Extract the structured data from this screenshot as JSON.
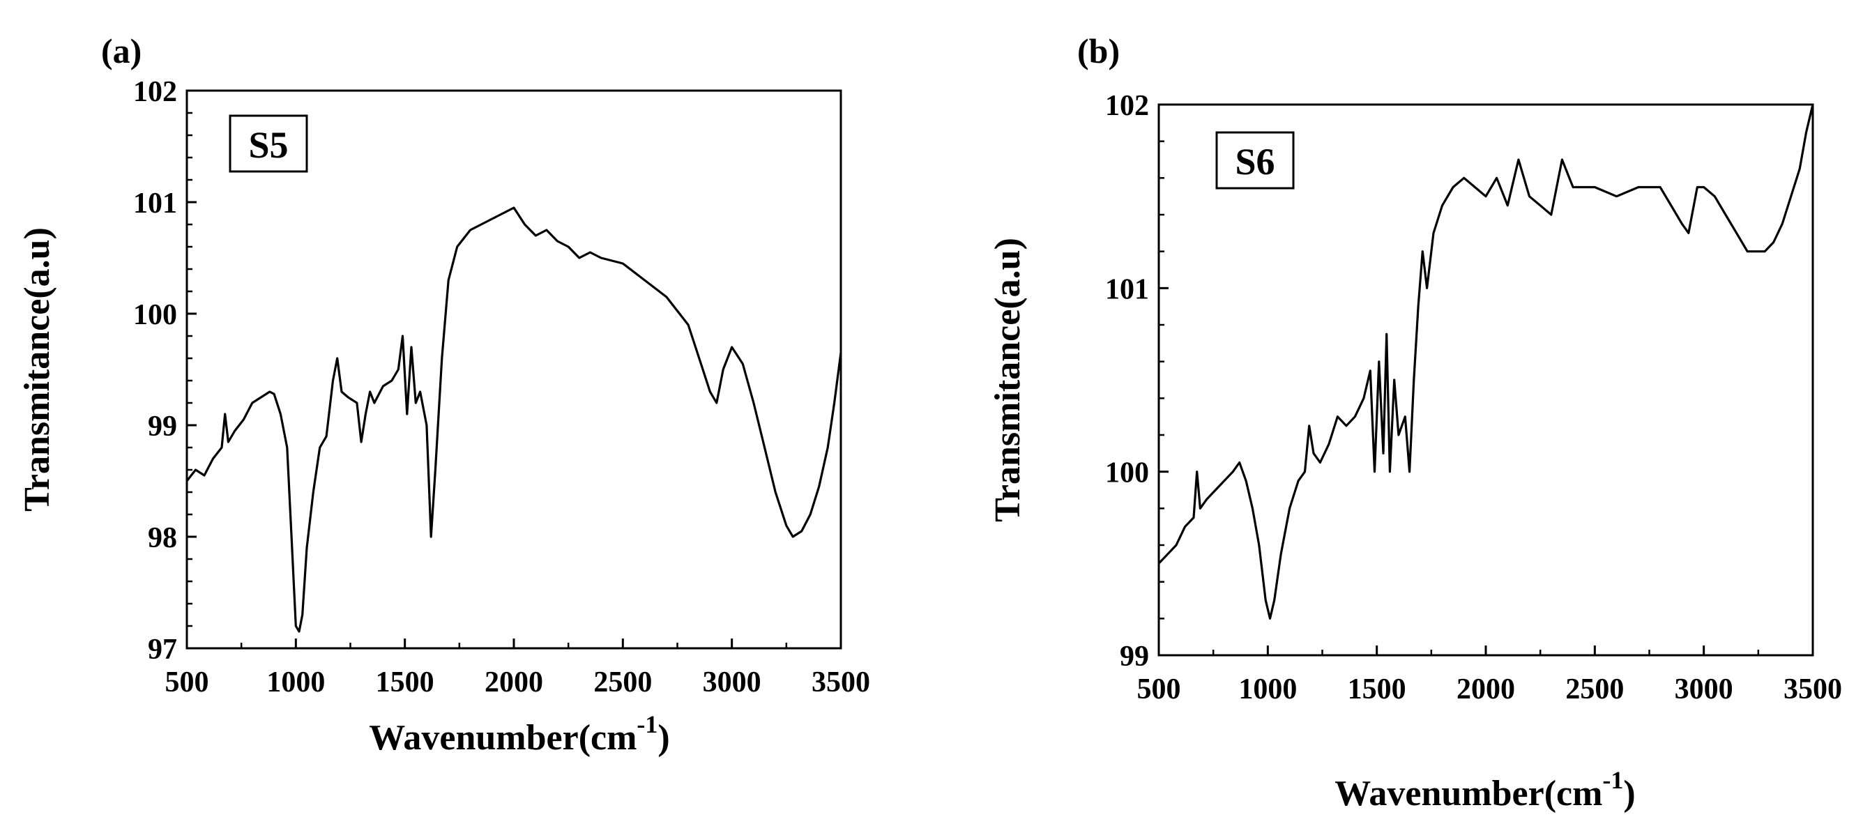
{
  "figure": {
    "panels": [
      "(a)",
      "(b)"
    ]
  },
  "chart_data": [
    {
      "type": "line",
      "panel_label": "(a)",
      "legend_text": "S5",
      "xlabel": "Wavenumber(cm",
      "xlabel_sup": "-1",
      "xlabel_tail": ")",
      "ylabel": "Transmitance(a.u)",
      "xlim": [
        500,
        3500
      ],
      "ylim": [
        97,
        102
      ],
      "xticks": [
        500,
        1000,
        1500,
        2000,
        2500,
        3000,
        3500
      ],
      "xtick_labels": [
        "500",
        "1000",
        "1500",
        "2000",
        "2500",
        "3000",
        "3500"
      ],
      "yticks": [
        97,
        98,
        99,
        100,
        101,
        102
      ],
      "ytick_labels": [
        "97",
        "98",
        "99",
        "100",
        "101",
        "102"
      ],
      "series": [
        {
          "name": "S5",
          "x": [
            500,
            540,
            580,
            620,
            660,
            675,
            690,
            720,
            760,
            800,
            840,
            880,
            900,
            930,
            960,
            980,
            1000,
            1015,
            1030,
            1050,
            1080,
            1110,
            1140,
            1170,
            1190,
            1210,
            1240,
            1280,
            1300,
            1320,
            1340,
            1360,
            1400,
            1440,
            1470,
            1490,
            1510,
            1530,
            1550,
            1570,
            1600,
            1620,
            1640,
            1670,
            1700,
            1740,
            1800,
            1850,
            1900,
            1950,
            2000,
            2050,
            2100,
            2150,
            2200,
            2250,
            2300,
            2350,
            2400,
            2500,
            2600,
            2700,
            2800,
            2850,
            2900,
            2930,
            2960,
            3000,
            3050,
            3100,
            3150,
            3200,
            3250,
            3280,
            3320,
            3360,
            3400,
            3440,
            3470,
            3500
          ],
          "y": [
            98.5,
            98.6,
            98.55,
            98.7,
            98.8,
            99.1,
            98.85,
            98.95,
            99.05,
            99.2,
            99.25,
            99.3,
            99.28,
            99.1,
            98.8,
            98.0,
            97.2,
            97.15,
            97.3,
            97.9,
            98.4,
            98.8,
            98.9,
            99.4,
            99.6,
            99.3,
            99.25,
            99.2,
            98.85,
            99.1,
            99.3,
            99.2,
            99.35,
            99.4,
            99.5,
            99.8,
            99.1,
            99.7,
            99.2,
            99.3,
            99.0,
            98.0,
            98.6,
            99.6,
            100.3,
            100.6,
            100.75,
            100.8,
            100.85,
            100.9,
            100.95,
            100.8,
            100.7,
            100.75,
            100.65,
            100.6,
            100.5,
            100.55,
            100.5,
            100.45,
            100.3,
            100.15,
            99.9,
            99.6,
            99.3,
            99.2,
            99.5,
            99.7,
            99.55,
            99.2,
            98.8,
            98.4,
            98.1,
            98.0,
            98.05,
            98.2,
            98.45,
            98.8,
            99.2,
            99.65
          ]
        }
      ]
    },
    {
      "type": "line",
      "panel_label": "(b)",
      "legend_text": "S6",
      "xlabel": "Wavenumber(cm",
      "xlabel_sup": "-1",
      "xlabel_tail": ")",
      "ylabel": "Transmitance(a.u)",
      "xlim": [
        500,
        3500
      ],
      "ylim": [
        99,
        102
      ],
      "xticks": [
        500,
        1000,
        1500,
        2000,
        2500,
        3000,
        3500
      ],
      "xtick_labels": [
        "500",
        "1000",
        "1500",
        "2000",
        "2500",
        "3000",
        "3500"
      ],
      "yticks": [
        99,
        100,
        101,
        102
      ],
      "ytick_labels": [
        "99",
        "100",
        "101",
        "102"
      ],
      "series": [
        {
          "name": "S6",
          "x": [
            500,
            540,
            580,
            620,
            660,
            675,
            690,
            720,
            760,
            800,
            840,
            870,
            900,
            930,
            960,
            990,
            1010,
            1030,
            1060,
            1100,
            1140,
            1170,
            1190,
            1210,
            1240,
            1280,
            1320,
            1360,
            1400,
            1440,
            1470,
            1490,
            1510,
            1530,
            1545,
            1560,
            1580,
            1600,
            1630,
            1650,
            1670,
            1690,
            1710,
            1730,
            1760,
            1800,
            1850,
            1900,
            1950,
            2000,
            2050,
            2100,
            2150,
            2200,
            2250,
            2300,
            2350,
            2400,
            2500,
            2600,
            2700,
            2800,
            2850,
            2900,
            2930,
            2970,
            3000,
            3050,
            3100,
            3150,
            3200,
            3250,
            3280,
            3320,
            3360,
            3400,
            3440,
            3470,
            3500
          ],
          "y": [
            99.5,
            99.55,
            99.6,
            99.7,
            99.75,
            100.0,
            99.8,
            99.85,
            99.9,
            99.95,
            100.0,
            100.05,
            99.95,
            99.8,
            99.6,
            99.3,
            99.2,
            99.3,
            99.55,
            99.8,
            99.95,
            100.0,
            100.25,
            100.1,
            100.05,
            100.15,
            100.3,
            100.25,
            100.3,
            100.4,
            100.55,
            100.0,
            100.6,
            100.1,
            100.75,
            100.0,
            100.5,
            100.2,
            100.3,
            100.0,
            100.5,
            100.9,
            101.2,
            101.0,
            101.3,
            101.45,
            101.55,
            101.6,
            101.55,
            101.5,
            101.6,
            101.45,
            101.7,
            101.5,
            101.45,
            101.4,
            101.7,
            101.55,
            101.55,
            101.5,
            101.55,
            101.55,
            101.45,
            101.35,
            101.3,
            101.55,
            101.55,
            101.5,
            101.4,
            101.3,
            101.2,
            101.2,
            101.2,
            101.25,
            101.35,
            101.5,
            101.65,
            101.85,
            102.0
          ]
        }
      ]
    }
  ]
}
